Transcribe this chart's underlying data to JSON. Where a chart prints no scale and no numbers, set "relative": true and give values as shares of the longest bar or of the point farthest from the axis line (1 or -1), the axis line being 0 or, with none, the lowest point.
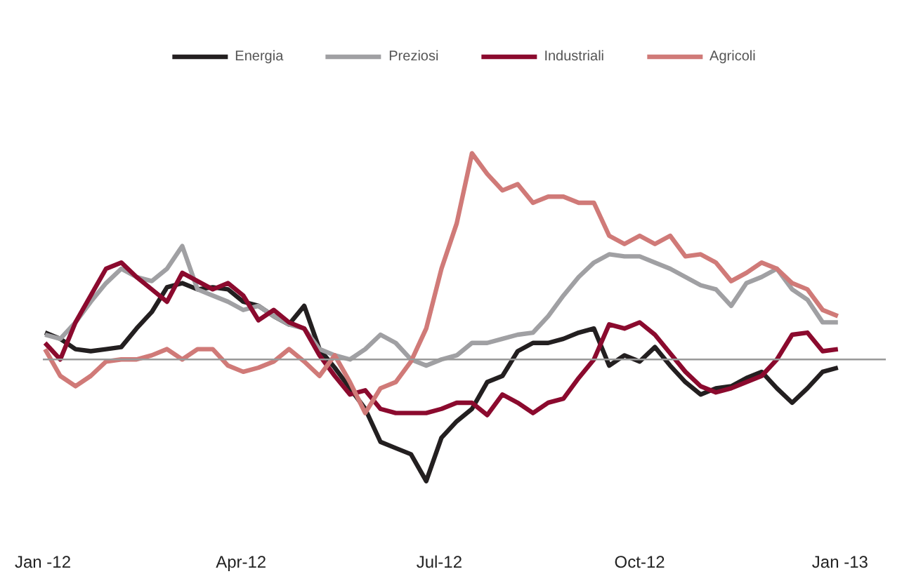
{
  "chart_data": {
    "type": "line",
    "relative": true,
    "legend": "top",
    "grid": false,
    "line_style": "solid",
    "marker": "none",
    "x": [
      "2012-01-02",
      "2012-01-09",
      "2012-01-16",
      "2012-01-23",
      "2012-01-30",
      "2012-02-06",
      "2012-02-13",
      "2012-02-20",
      "2012-02-27",
      "2012-03-05",
      "2012-03-12",
      "2012-03-19",
      "2012-03-26",
      "2012-04-02",
      "2012-04-09",
      "2012-04-16",
      "2012-04-23",
      "2012-04-30",
      "2012-05-07",
      "2012-05-14",
      "2012-05-21",
      "2012-05-28",
      "2012-06-04",
      "2012-06-11",
      "2012-06-18",
      "2012-06-25",
      "2012-07-02",
      "2012-07-09",
      "2012-07-16",
      "2012-07-23",
      "2012-07-30",
      "2012-08-06",
      "2012-08-13",
      "2012-08-20",
      "2012-08-27",
      "2012-09-03",
      "2012-09-10",
      "2012-09-17",
      "2012-09-24",
      "2012-10-01",
      "2012-10-08",
      "2012-10-15",
      "2012-10-22",
      "2012-10-29",
      "2012-11-05",
      "2012-11-12",
      "2012-11-19",
      "2012-11-26",
      "2012-12-03",
      "2012-12-10",
      "2012-12-17",
      "2012-12-24",
      "2012-12-31"
    ],
    "xlim": [
      "2012-01-01",
      "2013-01-22"
    ],
    "xticks": [
      {
        "value": "2012-01-01",
        "label": "Jan -12"
      },
      {
        "value": "2012-04-01",
        "label": "Apr-12"
      },
      {
        "value": "2012-07-01",
        "label": "Jul-12"
      },
      {
        "value": "2012-10-01",
        "label": "Oct-12"
      },
      {
        "value": "2013-01-01",
        "label": "Jan -13"
      }
    ],
    "series": [
      {
        "name": "Energia",
        "color": "#231f20",
        "values": [
          0.13,
          0.1,
          0.05,
          0.04,
          0.05,
          0.06,
          0.15,
          0.23,
          0.35,
          0.37,
          0.34,
          0.35,
          0.34,
          0.28,
          0.26,
          0.21,
          0.17,
          0.26,
          0.05,
          -0.04,
          -0.14,
          -0.24,
          -0.4,
          -0.43,
          -0.46,
          -0.59,
          -0.38,
          -0.3,
          -0.24,
          -0.11,
          -0.08,
          0.04,
          0.08,
          0.08,
          0.1,
          0.13,
          0.15,
          -0.03,
          0.02,
          -0.01,
          0.06,
          -0.03,
          -0.11,
          -0.17,
          -0.14,
          -0.13,
          -0.09,
          -0.06,
          -0.14,
          -0.21,
          -0.14,
          -0.06,
          -0.04
        ]
      },
      {
        "name": "Preziosi",
        "color": "#a0a0a3",
        "values": [
          0.12,
          0.1,
          0.18,
          0.28,
          0.37,
          0.44,
          0.4,
          0.38,
          0.44,
          0.55,
          0.34,
          0.31,
          0.28,
          0.24,
          0.26,
          0.21,
          0.17,
          0.15,
          0.05,
          0.02,
          0,
          0.05,
          0.12,
          0.08,
          0,
          -0.03,
          0,
          0.02,
          0.08,
          0.08,
          0.1,
          0.12,
          0.13,
          0.21,
          0.31,
          0.4,
          0.47,
          0.51,
          0.5,
          0.5,
          0.47,
          0.44,
          0.4,
          0.36,
          0.34,
          0.26,
          0.37,
          0.4,
          0.44,
          0.34,
          0.29,
          0.18,
          0.18
        ]
      },
      {
        "name": "Industriali",
        "color": "#8b0a2e",
        "values": [
          0.08,
          0,
          0.18,
          0.31,
          0.44,
          0.47,
          0.4,
          0.34,
          0.28,
          0.42,
          0.38,
          0.34,
          0.37,
          0.31,
          0.19,
          0.24,
          0.18,
          0.15,
          0.02,
          -0.08,
          -0.17,
          -0.15,
          -0.24,
          -0.26,
          -0.26,
          -0.26,
          -0.24,
          -0.21,
          -0.21,
          -0.27,
          -0.17,
          -0.21,
          -0.26,
          -0.21,
          -0.19,
          -0.09,
          0,
          0.17,
          0.15,
          0.18,
          0.12,
          0.03,
          -0.06,
          -0.13,
          -0.16,
          -0.14,
          -0.11,
          -0.08,
          0,
          0.12,
          0.13,
          0.04,
          0.05
        ]
      },
      {
        "name": "Agricoli",
        "color": "#d07a78",
        "values": [
          0.05,
          -0.08,
          -0.13,
          -0.08,
          -0.01,
          0,
          0,
          0.02,
          0.05,
          0,
          0.05,
          0.05,
          -0.03,
          -0.06,
          -0.04,
          -0.01,
          0.05,
          -0.01,
          -0.08,
          0.02,
          -0.11,
          -0.26,
          -0.14,
          -0.11,
          -0.01,
          0.15,
          0.44,
          0.66,
          1,
          0.9,
          0.82,
          0.85,
          0.76,
          0.79,
          0.79,
          0.76,
          0.76,
          0.6,
          0.56,
          0.6,
          0.56,
          0.6,
          0.5,
          0.51,
          0.47,
          0.38,
          0.42,
          0.47,
          0.44,
          0.37,
          0.34,
          0.24,
          0.21
        ]
      }
    ]
  }
}
